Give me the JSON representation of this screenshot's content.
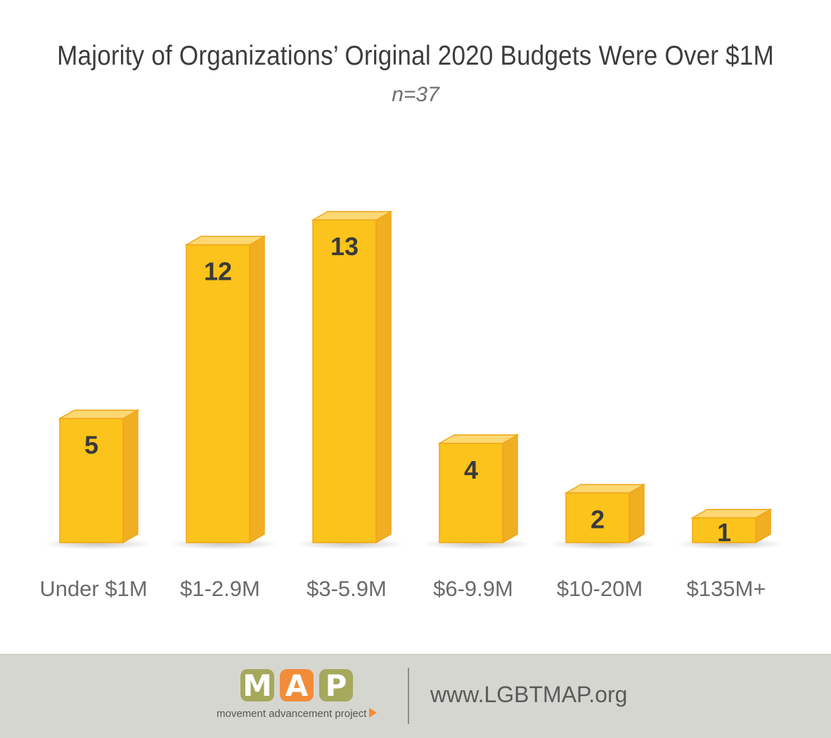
{
  "chart_data": {
    "type": "bar",
    "title": "Majority of Organizations’ Original 2020 Budgets Were Over $1M",
    "subtitle": "n=37",
    "categories": [
      "Under $1M",
      "$1-2.9M",
      "$3-5.9M",
      "$6-9.9M",
      "$10-20M",
      "$135M+"
    ],
    "values": [
      5,
      12,
      13,
      4,
      2,
      1
    ],
    "xlabel": "",
    "ylabel": "",
    "ylim": [
      0,
      13
    ],
    "grid": false,
    "legend": "none",
    "colors": {
      "bar_front": "#fbc31b",
      "bar_side": "#f0ae22",
      "bar_top": "#fdd873",
      "bar_edge": "#f0a51a"
    }
  },
  "footer": {
    "logo_letters": [
      "M",
      "A",
      "P"
    ],
    "logo_tagline": "movement advancement project",
    "url": "www.LGBTMAP.org",
    "colors": {
      "background": "#d6d6d0",
      "logo_green": "#a6a85c",
      "logo_orange": "#f28c38"
    }
  }
}
